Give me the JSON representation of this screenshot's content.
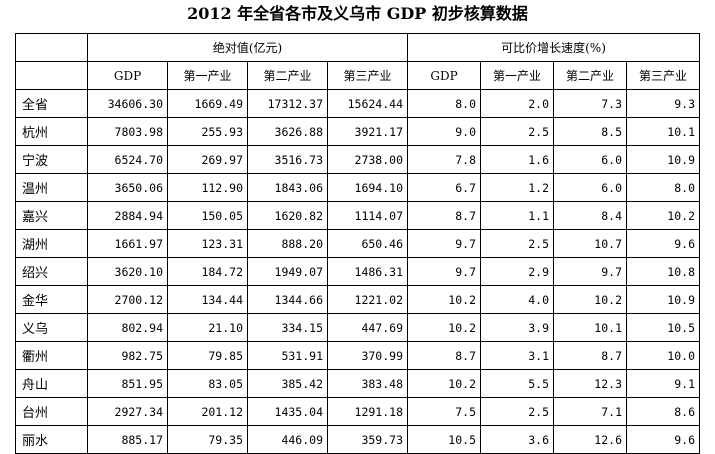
{
  "title": "2012 年全省各市及义乌市 GDP 初步核算数据",
  "header": {
    "group_absolute": "绝对值(亿元)",
    "group_growth": "可比价增长速度(%)",
    "sub_absolute": [
      "GDP",
      "第一产业",
      "第二产业",
      "第三产业"
    ],
    "sub_growth": [
      "GDP",
      "第一产业",
      "第二产业",
      "第三产业"
    ]
  },
  "rows": [
    {
      "region": "全省",
      "values": [
        "34606.30",
        "1669.49",
        "17312.37",
        "15624.44",
        "8.0",
        "2.0",
        "7.3",
        "9.3"
      ]
    },
    {
      "region": "杭州",
      "values": [
        "7803.98",
        "255.93",
        "3626.88",
        "3921.17",
        "9.0",
        "2.5",
        "8.5",
        "10.1"
      ]
    },
    {
      "region": "宁波",
      "values": [
        "6524.70",
        "269.97",
        "3516.73",
        "2738.00",
        "7.8",
        "1.6",
        "6.0",
        "10.9"
      ]
    },
    {
      "region": "温州",
      "values": [
        "3650.06",
        "112.90",
        "1843.06",
        "1694.10",
        "6.7",
        "1.2",
        "6.0",
        "8.0"
      ]
    },
    {
      "region": "嘉兴",
      "values": [
        "2884.94",
        "150.05",
        "1620.82",
        "1114.07",
        "8.7",
        "1.1",
        "8.4",
        "10.2"
      ]
    },
    {
      "region": "湖州",
      "values": [
        "1661.97",
        "123.31",
        "888.20",
        "650.46",
        "9.7",
        "2.5",
        "10.7",
        "9.6"
      ]
    },
    {
      "region": "绍兴",
      "values": [
        "3620.10",
        "184.72",
        "1949.07",
        "1486.31",
        "9.7",
        "2.9",
        "9.7",
        "10.8"
      ]
    },
    {
      "region": "金华",
      "values": [
        "2700.12",
        "134.44",
        "1344.66",
        "1221.02",
        "10.2",
        "4.0",
        "10.2",
        "10.9"
      ]
    },
    {
      "region": "义乌",
      "values": [
        "802.94",
        "21.10",
        "334.15",
        "447.69",
        "10.2",
        "3.9",
        "10.1",
        "10.5"
      ]
    },
    {
      "region": "衢州",
      "values": [
        "982.75",
        "79.85",
        "531.91",
        "370.99",
        "8.7",
        "3.1",
        "8.7",
        "10.0"
      ]
    },
    {
      "region": "舟山",
      "values": [
        "851.95",
        "83.05",
        "385.42",
        "383.48",
        "10.2",
        "5.5",
        "12.3",
        "9.1"
      ]
    },
    {
      "region": "台州",
      "values": [
        "2927.34",
        "201.12",
        "1435.04",
        "1291.18",
        "7.5",
        "2.5",
        "7.1",
        "8.6"
      ]
    },
    {
      "region": "丽水",
      "values": [
        "885.17",
        "79.35",
        "446.09",
        "359.73",
        "10.5",
        "3.6",
        "12.6",
        "9.6"
      ]
    }
  ]
}
